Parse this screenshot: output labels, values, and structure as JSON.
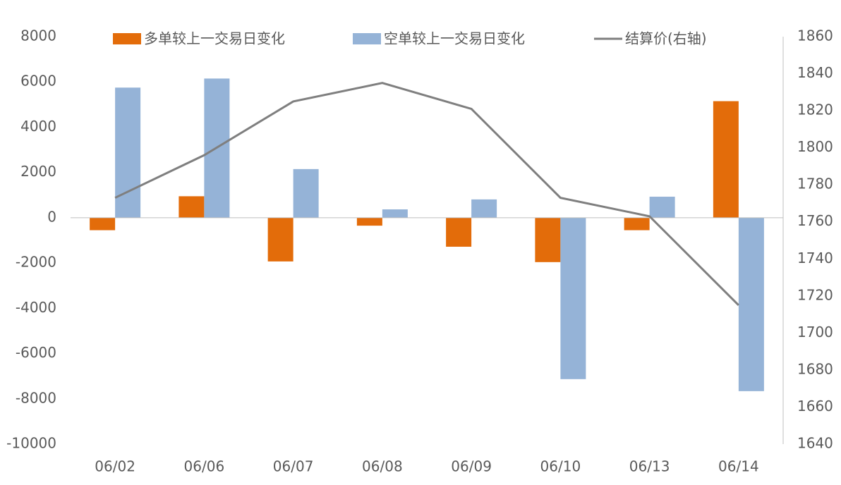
{
  "chart_data": {
    "type": "bar-line",
    "categories": [
      "06/02",
      "06/06",
      "06/07",
      "06/08",
      "06/09",
      "06/10",
      "06/13",
      "06/14"
    ],
    "series": [
      {
        "name": "多单较上一交易日变化",
        "color": "#e36c0a",
        "type": "bar",
        "values": [
          -550,
          950,
          -1930,
          -350,
          -1280,
          -1960,
          -550,
          5150
        ]
      },
      {
        "name": "空单较上一交易日变化",
        "color": "#95b3d7",
        "type": "bar",
        "values": [
          5750,
          6150,
          2150,
          370,
          810,
          -7130,
          930,
          -7660
        ]
      },
      {
        "name": "结算价(右轴)",
        "color": "#7f7f7f",
        "type": "line",
        "axis": "y2",
        "values": [
          1773,
          1796,
          1825,
          1835,
          1821,
          1773,
          1763,
          1715
        ]
      }
    ],
    "ylim": [
      -10000,
      8000
    ],
    "yticks": [
      -10000,
      -8000,
      -6000,
      -4000,
      -2000,
      0,
      2000,
      4000,
      6000,
      8000
    ],
    "y2lim": [
      1640,
      1860
    ],
    "y2ticks": [
      1640,
      1660,
      1680,
      1700,
      1720,
      1740,
      1760,
      1780,
      1800,
      1820,
      1840,
      1860
    ],
    "legend": "top"
  }
}
